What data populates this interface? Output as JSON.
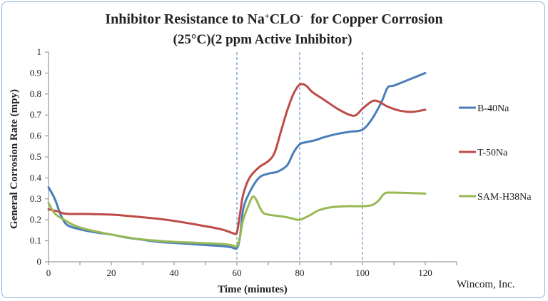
{
  "chart_data": {
    "type": "line",
    "title_line1_prefix": "Inhibitor Resistance to Na",
    "title_line1_sup1": "+",
    "title_line1_mid": "CLO",
    "title_line1_sup2": "-",
    "title_line1_suffix": "  for Copper Corrosion",
    "title_line2": "(25°C)(2 ppm Active Inhibitor)",
    "xlabel": "Time (minutes)",
    "ylabel": "General Corrosion Rate (mpy)",
    "xlim": [
      0,
      130
    ],
    "ylim": [
      0,
      1
    ],
    "x_ticks": [
      0,
      20,
      40,
      60,
      80,
      100,
      120
    ],
    "y_ticks": [
      0,
      0.1,
      0.2,
      0.3,
      0.4,
      0.5,
      0.6,
      0.7,
      0.8,
      0.9,
      1
    ],
    "y_tick_labels": [
      "0",
      "0.1",
      "0.2",
      "0.3",
      "0.4",
      "0.5",
      "0.6",
      "0.7",
      "0.8",
      "0.9",
      "1"
    ],
    "vlines": [
      60,
      80,
      100
    ],
    "legend_position": "right",
    "credit": "Wincom, Inc.",
    "series": [
      {
        "name": "B-40Na",
        "color": "#4a7ebb",
        "points": [
          [
            0,
            0.355
          ],
          [
            2,
            0.3
          ],
          [
            4,
            0.22
          ],
          [
            6,
            0.175
          ],
          [
            10,
            0.155
          ],
          [
            15,
            0.14
          ],
          [
            20,
            0.13
          ],
          [
            25,
            0.115
          ],
          [
            30,
            0.105
          ],
          [
            35,
            0.095
          ],
          [
            40,
            0.09
          ],
          [
            45,
            0.085
          ],
          [
            50,
            0.08
          ],
          [
            55,
            0.075
          ],
          [
            58,
            0.07
          ],
          [
            60,
            0.065
          ],
          [
            61,
            0.12
          ],
          [
            62,
            0.25
          ],
          [
            64,
            0.33
          ],
          [
            67,
            0.4
          ],
          [
            70,
            0.42
          ],
          [
            73,
            0.43
          ],
          [
            76,
            0.46
          ],
          [
            78,
            0.52
          ],
          [
            80,
            0.56
          ],
          [
            82,
            0.57
          ],
          [
            85,
            0.58
          ],
          [
            88,
            0.595
          ],
          [
            92,
            0.61
          ],
          [
            96,
            0.62
          ],
          [
            100,
            0.63
          ],
          [
            103,
            0.68
          ],
          [
            106,
            0.76
          ],
          [
            108,
            0.83
          ],
          [
            110,
            0.84
          ],
          [
            115,
            0.87
          ],
          [
            120,
            0.9
          ]
        ]
      },
      {
        "name": "T-50Na",
        "color": "#be4b48",
        "points": [
          [
            0,
            0.25
          ],
          [
            3,
            0.24
          ],
          [
            5,
            0.23
          ],
          [
            8,
            0.228
          ],
          [
            12,
            0.228
          ],
          [
            20,
            0.225
          ],
          [
            28,
            0.215
          ],
          [
            35,
            0.205
          ],
          [
            40,
            0.195
          ],
          [
            48,
            0.175
          ],
          [
            55,
            0.155
          ],
          [
            58,
            0.14
          ],
          [
            59,
            0.135
          ],
          [
            60,
            0.14
          ],
          [
            61,
            0.23
          ],
          [
            62,
            0.32
          ],
          [
            64,
            0.4
          ],
          [
            67,
            0.45
          ],
          [
            70,
            0.48
          ],
          [
            72,
            0.52
          ],
          [
            74,
            0.62
          ],
          [
            76,
            0.72
          ],
          [
            78,
            0.8
          ],
          [
            80,
            0.845
          ],
          [
            82,
            0.84
          ],
          [
            84,
            0.81
          ],
          [
            88,
            0.77
          ],
          [
            92,
            0.73
          ],
          [
            96,
            0.7
          ],
          [
            98,
            0.7
          ],
          [
            100,
            0.73
          ],
          [
            103,
            0.765
          ],
          [
            105,
            0.765
          ],
          [
            108,
            0.74
          ],
          [
            112,
            0.72
          ],
          [
            116,
            0.715
          ],
          [
            120,
            0.725
          ]
        ]
      },
      {
        "name": "SAM-H38Na",
        "color": "#98b954",
        "points": [
          [
            0,
            0.28
          ],
          [
            2,
            0.23
          ],
          [
            5,
            0.2
          ],
          [
            8,
            0.175
          ],
          [
            12,
            0.155
          ],
          [
            20,
            0.13
          ],
          [
            28,
            0.11
          ],
          [
            35,
            0.1
          ],
          [
            40,
            0.095
          ],
          [
            48,
            0.09
          ],
          [
            55,
            0.085
          ],
          [
            58,
            0.08
          ],
          [
            60,
            0.075
          ],
          [
            61,
            0.12
          ],
          [
            62,
            0.2
          ],
          [
            64,
            0.28
          ],
          [
            65,
            0.31
          ],
          [
            66,
            0.3
          ],
          [
            68,
            0.24
          ],
          [
            70,
            0.225
          ],
          [
            75,
            0.215
          ],
          [
            78,
            0.205
          ],
          [
            80,
            0.2
          ],
          [
            83,
            0.22
          ],
          [
            86,
            0.245
          ],
          [
            90,
            0.26
          ],
          [
            95,
            0.265
          ],
          [
            100,
            0.265
          ],
          [
            103,
            0.27
          ],
          [
            105,
            0.29
          ],
          [
            107,
            0.325
          ],
          [
            109,
            0.33
          ],
          [
            115,
            0.328
          ],
          [
            120,
            0.325
          ]
        ]
      }
    ]
  }
}
